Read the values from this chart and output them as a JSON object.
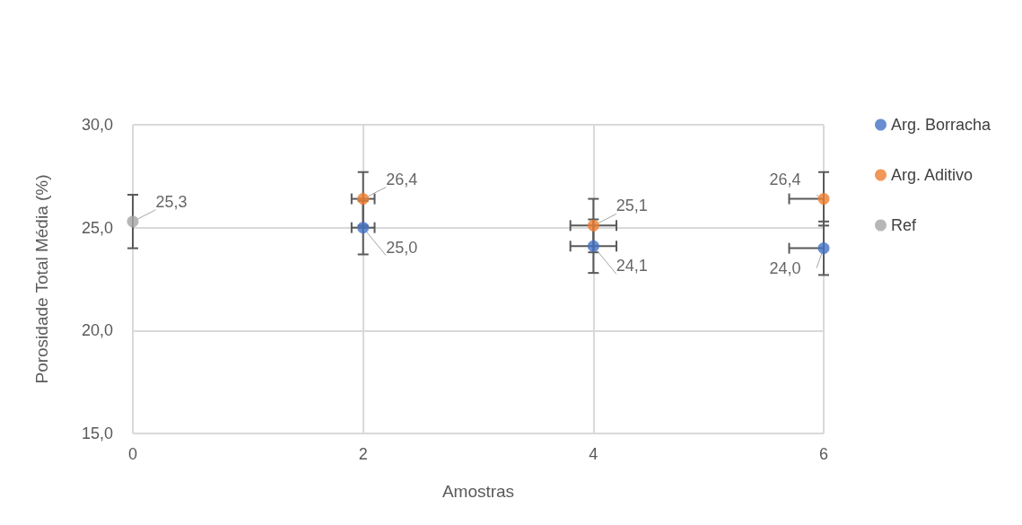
{
  "chart_data": {
    "type": "scatter",
    "xlabel": "Amostras",
    "ylabel": "Porosidade Total Média (%)",
    "xlim": [
      0,
      6
    ],
    "xticks": [
      0,
      2,
      4,
      6
    ],
    "ylim": [
      15,
      30
    ],
    "yticks": [
      {
        "value": 15,
        "label": "15,0"
      },
      {
        "value": 20,
        "label": "20,0"
      },
      {
        "value": 25,
        "label": "25,0"
      },
      {
        "value": 30,
        "label": "30,0"
      }
    ],
    "grid": true,
    "legend": "right",
    "marker": "circle",
    "series": [
      {
        "name": "Arg. Borracha",
        "color": "#4472c4",
        "x": [
          2,
          4,
          6
        ],
        "values": [
          25.0,
          24.1,
          24.0
        ],
        "value_labels": [
          "25,0",
          "24,1",
          "24,0"
        ],
        "errors": [
          1.3,
          1.3,
          1.3
        ],
        "xerrors": [
          0.1,
          0.2,
          [
            5.7,
            6
          ]
        ]
      },
      {
        "name": "Arg. Aditivo",
        "color": "#ed7d31",
        "x": [
          2,
          4,
          6
        ],
        "values": [
          26.4,
          25.1,
          26.4
        ],
        "value_labels": [
          "26,4",
          "25,1",
          "26,4"
        ],
        "errors": [
          1.3,
          1.3,
          1.3
        ],
        "xerrors": [
          0.1,
          0.2,
          [
            5.7,
            6
          ]
        ]
      },
      {
        "name": "Ref",
        "color": "#a5a5a5",
        "x": [
          0
        ],
        "values": [
          25.3
        ],
        "value_labels": [
          "25,3"
        ],
        "errors": [
          1.3
        ]
      }
    ]
  }
}
